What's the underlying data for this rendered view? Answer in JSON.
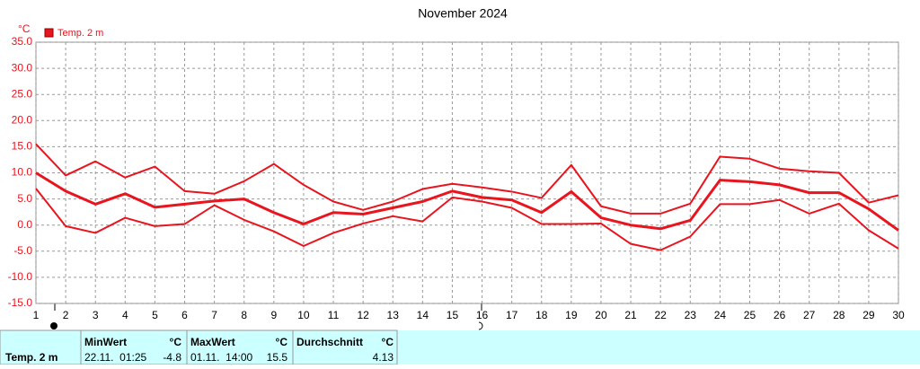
{
  "chart_data": {
    "type": "line",
    "title": "November 2024",
    "y_unit": "°C",
    "legend": "Temp. 2 m",
    "x": [
      1,
      2,
      3,
      4,
      5,
      6,
      7,
      8,
      9,
      10,
      11,
      12,
      13,
      14,
      15,
      16,
      17,
      18,
      19,
      20,
      21,
      22,
      23,
      24,
      25,
      26,
      27,
      28,
      29,
      30
    ],
    "xlim": [
      1,
      30
    ],
    "xticks": [
      1,
      2,
      3,
      4,
      5,
      6,
      7,
      8,
      9,
      10,
      11,
      12,
      13,
      14,
      15,
      16,
      17,
      18,
      19,
      20,
      21,
      22,
      23,
      24,
      25,
      26,
      27,
      28,
      29,
      30
    ],
    "ylim": [
      -15,
      35
    ],
    "yticks": [
      {
        "value": -15,
        "label": "-15.0"
      },
      {
        "value": -10,
        "label": "-10.0"
      },
      {
        "value": -5,
        "label": "-5.0"
      },
      {
        "value": 0,
        "label": "0.0"
      },
      {
        "value": 5,
        "label": "5.0"
      },
      {
        "value": 10,
        "label": "10.0"
      },
      {
        "value": 15,
        "label": "15.0"
      },
      {
        "value": 20,
        "label": "20.0"
      },
      {
        "value": 25,
        "label": "25.0"
      },
      {
        "value": 30,
        "label": "30.0"
      },
      {
        "value": 35,
        "label": "35.0"
      }
    ],
    "grid": true,
    "series": [
      {
        "color": "#e8141e",
        "width": 2,
        "values": [
          15.5,
          9.5,
          12.2,
          9.1,
          11.2,
          6.5,
          6.0,
          8.4,
          11.7,
          7.7,
          4.5,
          2.9,
          4.5,
          6.9,
          7.9,
          7.2,
          6.4,
          5.2,
          11.5,
          3.6,
          2.2,
          2.2,
          4.1,
          13.1,
          12.7,
          10.8,
          10.3,
          10.0,
          4.3,
          5.7
        ]
      },
      {
        "color": "#e8141e",
        "width": 3,
        "values": [
          10.0,
          6.5,
          4.0,
          6.0,
          3.4,
          4.0,
          4.6,
          5.0,
          2.4,
          0.2,
          2.4,
          2.1,
          3.3,
          4.5,
          6.5,
          5.3,
          4.8,
          2.4,
          6.4,
          1.4,
          0.0,
          -0.7,
          0.9,
          8.6,
          8.3,
          7.7,
          6.2,
          6.2,
          3.1,
          -1.0
        ]
      },
      {
        "color": "#e8141e",
        "width": 2,
        "values": [
          7.0,
          -0.2,
          -1.5,
          1.4,
          -0.2,
          0.2,
          3.8,
          1.0,
          -1.2,
          -4.0,
          -1.5,
          0.3,
          1.7,
          0.7,
          5.3,
          4.5,
          3.3,
          0.2,
          0.2,
          0.3,
          -3.6,
          -4.8,
          -2.2,
          4.0,
          4.0,
          4.8,
          2.2,
          4.1,
          -1.0,
          -4.5
        ]
      }
    ]
  },
  "summary": {
    "label": "Temp. 2 m",
    "columns": [
      {
        "title": "MinWert",
        "unit": "°C",
        "time": "22.11.  01:25",
        "value": -4.8
      },
      {
        "title": "MaxWert",
        "unit": "°C",
        "time": "01.11.  14:00",
        "value": 15.5
      },
      {
        "title": "Durchschnitt",
        "unit": "°C",
        "value": 4.13
      }
    ]
  }
}
